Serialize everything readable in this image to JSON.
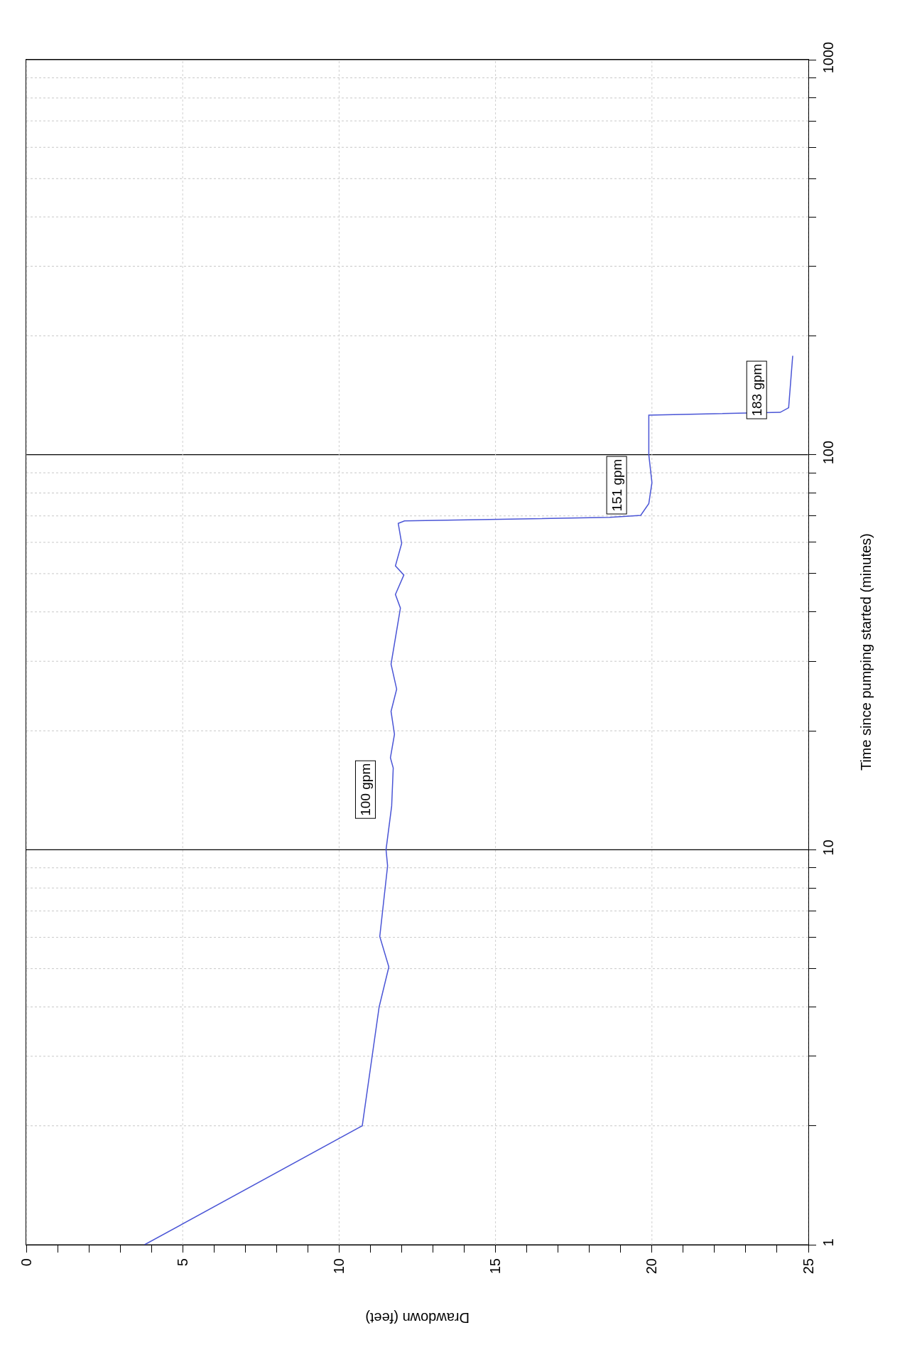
{
  "chart_data": {
    "type": "line",
    "xlabel": "Drawdown (feet)",
    "ylabel": "Time since pumping started (minutes)",
    "x": [
      3.78,
      10.74,
      11.28,
      11.59,
      11.3,
      11.55,
      11.5,
      11.68,
      11.73,
      11.64,
      11.77,
      11.66,
      11.84,
      11.66,
      11.96,
      11.8,
      12.07,
      11.8,
      12.0,
      11.89,
      12.09,
      18.65,
      19.64,
      19.9,
      20.0,
      19.9,
      19.9,
      24.1,
      24.37,
      24.5
    ],
    "series": [
      {
        "color": "#4a55d6",
        "values": [
          1,
          2.0,
          4.0,
          5.05,
          6.03,
          9.1,
          10,
          12.9,
          16.1,
          17.1,
          19.6,
          22.4,
          25.5,
          29.5,
          40.9,
          44.3,
          49.6,
          52.3,
          59.6,
          67,
          68,
          69.4,
          70.2,
          75.2,
          85,
          100,
          126,
          128,
          131.5,
          178
        ]
      }
    ],
    "log": "y",
    "ylim": [
      1,
      1000
    ],
    "yticks": [
      1,
      {
        "value": 2,
        "label": null
      },
      {
        "value": 3,
        "label": null
      },
      {
        "value": 4,
        "label": null
      },
      {
        "value": 5,
        "label": null
      },
      {
        "value": 6,
        "label": null
      },
      {
        "value": 7,
        "label": null
      },
      {
        "value": 8,
        "label": null
      },
      {
        "value": 9,
        "label": null
      },
      10,
      {
        "value": 20,
        "label": null
      },
      {
        "value": 30,
        "label": null
      },
      {
        "value": 40,
        "label": null
      },
      {
        "value": 50,
        "label": null
      },
      {
        "value": 60,
        "label": null
      },
      {
        "value": 70,
        "label": null
      },
      {
        "value": 80,
        "label": null
      },
      {
        "value": 90,
        "label": null
      },
      100,
      {
        "value": 200,
        "label": null
      },
      {
        "value": 300,
        "label": null
      },
      {
        "value": 400,
        "label": null
      },
      {
        "value": 500,
        "label": null
      },
      {
        "value": 600,
        "label": null
      },
      {
        "value": 700,
        "label": null
      },
      {
        "value": 800,
        "label": null
      },
      {
        "value": 900,
        "label": null
      },
      1000
    ],
    "xlim": [
      0,
      25
    ],
    "xticks": [
      0,
      {
        "value": 1,
        "label": null
      },
      {
        "value": 2,
        "label": null
      },
      {
        "value": 3,
        "label": null
      },
      {
        "value": 4,
        "label": null
      },
      5,
      {
        "value": 6,
        "label": null
      },
      {
        "value": 7,
        "label": null
      },
      {
        "value": 8,
        "label": null
      },
      {
        "value": 9,
        "label": null
      },
      10,
      {
        "value": 11,
        "label": null
      },
      {
        "value": 12,
        "label": null
      },
      {
        "value": 13,
        "label": null
      },
      {
        "value": 14,
        "label": null
      },
      15,
      {
        "value": 16,
        "label": null
      },
      {
        "value": 17,
        "label": null
      },
      {
        "value": 18,
        "label": null
      },
      {
        "value": 19,
        "label": null
      },
      20,
      {
        "value": 21,
        "label": null
      },
      {
        "value": 22,
        "label": null
      },
      {
        "value": 23,
        "label": null
      },
      {
        "value": 24,
        "label": null
      },
      25
    ],
    "grid": true,
    "annotations": [
      "100 gpm",
      "151 gpm",
      "183 gpm"
    ]
  }
}
